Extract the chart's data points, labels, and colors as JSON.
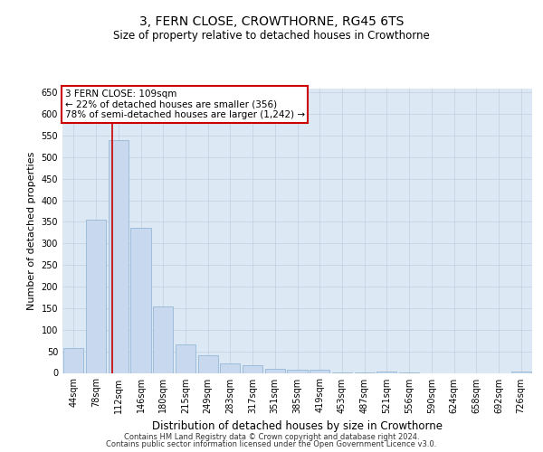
{
  "title": "3, FERN CLOSE, CROWTHORNE, RG45 6TS",
  "subtitle": "Size of property relative to detached houses in Crowthorne",
  "xlabel": "Distribution of detached houses by size in Crowthorne",
  "ylabel": "Number of detached properties",
  "bar_labels": [
    "44sqm",
    "78sqm",
    "112sqm",
    "146sqm",
    "180sqm",
    "215sqm",
    "249sqm",
    "283sqm",
    "317sqm",
    "351sqm",
    "385sqm",
    "419sqm",
    "453sqm",
    "487sqm",
    "521sqm",
    "556sqm",
    "590sqm",
    "624sqm",
    "658sqm",
    "692sqm",
    "726sqm"
  ],
  "bar_values": [
    57,
    355,
    540,
    337,
    155,
    67,
    40,
    22,
    18,
    10,
    7,
    8,
    1,
    1,
    4,
    1,
    0,
    0,
    0,
    0,
    4
  ],
  "bar_color": "#c8d8ee",
  "bar_edge_color": "#8ab0d0",
  "grid_color": "#c0cfe0",
  "bg_color": "#dce8f4",
  "red_line_x": 1.72,
  "annotation_text": "3 FERN CLOSE: 109sqm\n← 22% of detached houses are smaller (356)\n78% of semi-detached houses are larger (1,242) →",
  "annotation_box_color": "#ffffff",
  "annotation_border_color": "#cc0000",
  "footer_line1": "Contains HM Land Registry data © Crown copyright and database right 2024.",
  "footer_line2": "Contains public sector information licensed under the Open Government Licence v3.0.",
  "ylim": [
    0,
    660
  ],
  "yticks": [
    0,
    50,
    100,
    150,
    200,
    250,
    300,
    350,
    400,
    450,
    500,
    550,
    600,
    650
  ],
  "title_fontsize": 10,
  "subtitle_fontsize": 8.5,
  "ylabel_fontsize": 8,
  "xlabel_fontsize": 8.5,
  "tick_fontsize": 7,
  "annot_fontsize": 7.5,
  "footer_fontsize": 6
}
